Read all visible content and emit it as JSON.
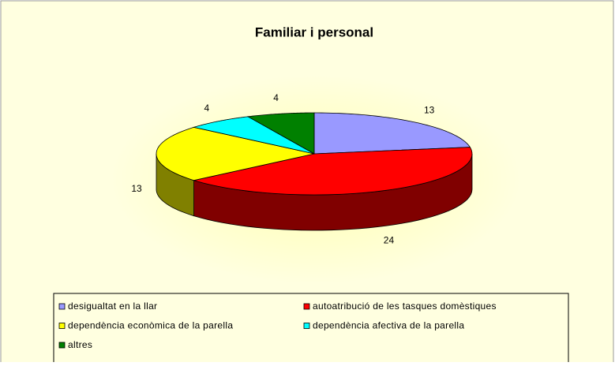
{
  "chart_data": {
    "type": "pie",
    "title": "Familiar i personal",
    "categories": [
      "desigualtat en la llar",
      "autoatribució de les tasques domèstiques",
      "dependència econòmica de la parella",
      "dependència afectiva de la parella",
      "altres"
    ],
    "values": [
      13,
      24,
      13,
      4,
      4
    ],
    "colors": [
      "#9999ff",
      "#ff0000",
      "#ffff00",
      "#00ffff",
      "#008000"
    ],
    "side_colors": [
      "#4c4c80",
      "#800000",
      "#808000",
      "#008080",
      "#004000"
    ]
  }
}
